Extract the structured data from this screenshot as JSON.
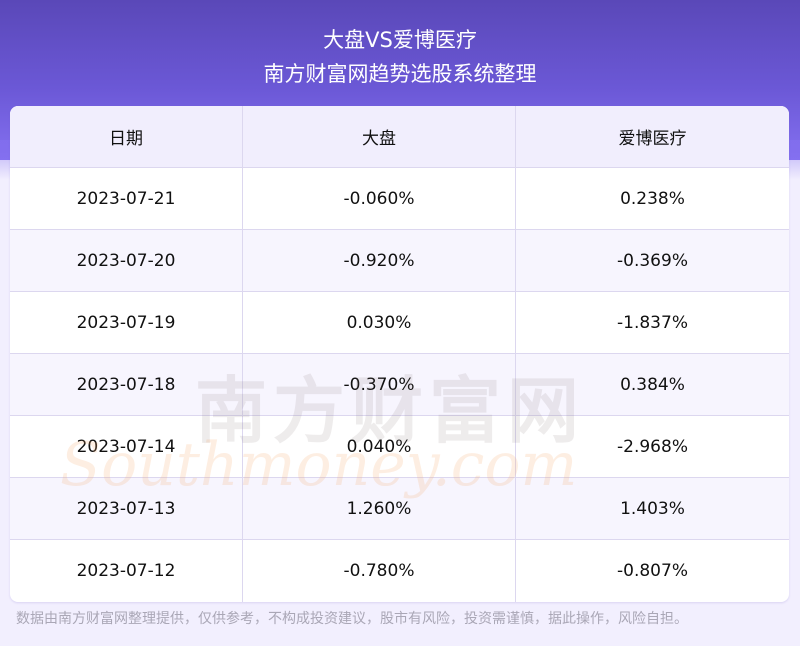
{
  "header": {
    "title": "大盘VS爱博医疗",
    "subtitle": "南方财富网趋势选股系统整理"
  },
  "chart_data": {
    "type": "table",
    "columns": [
      "日期",
      "大盘",
      "爱博医疗"
    ],
    "rows": [
      [
        "2023-07-21",
        "-0.060%",
        "0.238%"
      ],
      [
        "2023-07-20",
        "-0.920%",
        "-0.369%"
      ],
      [
        "2023-07-19",
        "0.030%",
        "-1.837%"
      ],
      [
        "2023-07-18",
        "-0.370%",
        "0.384%"
      ],
      [
        "2023-07-14",
        "0.040%",
        "-2.968%"
      ],
      [
        "2023-07-13",
        "1.260%",
        "1.403%"
      ],
      [
        "2023-07-12",
        "-0.780%",
        "-0.807%"
      ]
    ]
  },
  "watermark": {
    "cn": "南方财富网",
    "en": "Southmoney.com"
  },
  "footer": "数据由南方财富网整理提供，仅供参考，不构成投资建议，股市有风险，投资需谨慎，据此操作，风险自担。",
  "colors": {
    "header_bg": "#6b58d6",
    "table_head": "#f1eefd",
    "row_alt": "#f7f5fe",
    "page_bg": "#f2effe"
  }
}
